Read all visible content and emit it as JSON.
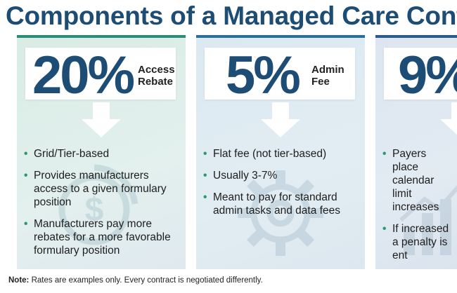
{
  "title": "Components of a Managed Care Cont",
  "cards": [
    {
      "percent": "20%",
      "label_line1": "Access",
      "label_line2": "Rebate",
      "bullets": [
        "Grid/Tier-based",
        "Provides manufacturers access to a given formulary position",
        "Manufacturers pay more rebates for a more favorable formulary position"
      ],
      "icon": "dollar-cycle-icon"
    },
    {
      "percent": "5%",
      "label_line1": "Admin",
      "label_line2": "Fee",
      "bullets": [
        "Flat fee (not tier-based)",
        "Usually 3-7%",
        "Meant to pay for standard admin tasks and data fees"
      ],
      "icon": "gear-icon"
    },
    {
      "percent": "9%",
      "label_line1": "",
      "label_line2": "",
      "bullets": [
        "Payers place calendar limit increases",
        "If increased a penalty is ent"
      ],
      "icon": "chart-arrow-icon"
    }
  ],
  "note": {
    "label": "Note:",
    "text": " Rates are examples only. Every contract is negotiated differently."
  },
  "colors": {
    "title": "#1d4d74",
    "bullet": "#2a9a6e",
    "card1_border": "#2e8b7a",
    "card2_border": "#2a6f98",
    "card3_border": "#2c5a8a"
  }
}
